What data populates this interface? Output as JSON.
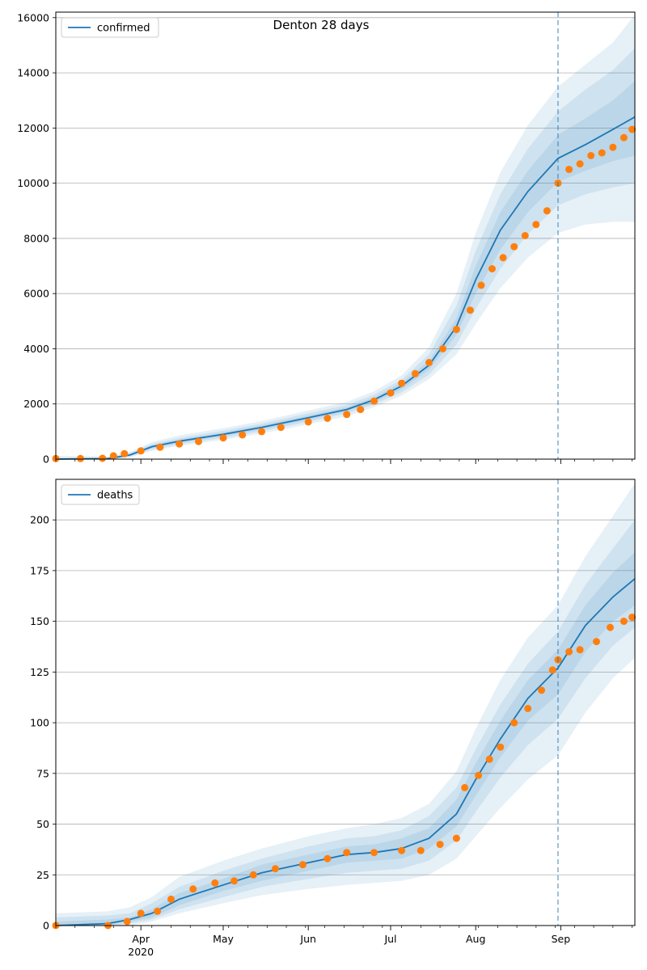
{
  "title": "Denton 28 days",
  "colors": {
    "model_line": "#1f77b4",
    "band": "#1f77b4",
    "observed": "#ff7f0e",
    "grid": "#b0b0b0",
    "cutoff_line": "#1f77b4"
  },
  "x_axis": {
    "start": "2020-03-01",
    "end": "2020-09-28",
    "month_labels": [
      {
        "date": "2020-04-01",
        "label": "Apr",
        "sub": "2020"
      },
      {
        "date": "2020-05-01",
        "label": "May",
        "sub": ""
      },
      {
        "date": "2020-06-01",
        "label": "Jun",
        "sub": ""
      },
      {
        "date": "2020-07-01",
        "label": "Jul",
        "sub": ""
      },
      {
        "date": "2020-08-01",
        "label": "Aug",
        "sub": ""
      },
      {
        "date": "2020-09-01",
        "label": "Sep",
        "sub": ""
      }
    ],
    "forecast_start": "2020-08-31"
  },
  "chart_data": [
    {
      "type": "line",
      "legend": "confirmed",
      "legend_position": "upper-left",
      "grid": "horizontal",
      "ylim": [
        0,
        16200
      ],
      "yticks": [
        0,
        2000,
        4000,
        6000,
        8000,
        10000,
        12000,
        14000,
        16000
      ],
      "model_x": [
        "2020-03-01",
        "2020-03-20",
        "2020-03-28",
        "2020-04-05",
        "2020-04-15",
        "2020-05-01",
        "2020-05-15",
        "2020-06-01",
        "2020-06-15",
        "2020-06-25",
        "2020-07-05",
        "2020-07-15",
        "2020-07-25",
        "2020-08-01",
        "2020-08-10",
        "2020-08-20",
        "2020-08-31",
        "2020-09-10",
        "2020-09-20",
        "2020-09-28"
      ],
      "model_y": [
        0,
        20,
        150,
        450,
        650,
        900,
        1150,
        1500,
        1800,
        2150,
        2650,
        3400,
        4800,
        6500,
        8300,
        9700,
        10900,
        11400,
        11950,
        12400
      ],
      "bands": [
        {
          "lo": [
            0,
            0,
            60,
            300,
            480,
            700,
            930,
            1260,
            1550,
            1880,
            2300,
            2900,
            3800,
            4900,
            6200,
            7300,
            8200,
            8500,
            8600,
            8600
          ],
          "hi": [
            120,
            100,
            260,
            620,
            860,
            1120,
            1380,
            1760,
            2070,
            2460,
            3040,
            4050,
            6000,
            8200,
            10400,
            12100,
            13500,
            14300,
            15100,
            16100
          ]
        },
        {
          "lo": [
            0,
            0,
            90,
            350,
            540,
            770,
            1010,
            1350,
            1650,
            1980,
            2420,
            3060,
            4150,
            5450,
            6900,
            8150,
            9200,
            9600,
            9850,
            10000
          ],
          "hi": [
            60,
            60,
            210,
            550,
            770,
            1030,
            1290,
            1660,
            1960,
            2340,
            2880,
            3800,
            5550,
            7550,
            9600,
            11250,
            12600,
            13400,
            14100,
            14900
          ]
        },
        {
          "lo": [
            0,
            5,
            115,
            395,
            595,
            835,
            1075,
            1420,
            1725,
            2065,
            2530,
            3240,
            4500,
            6000,
            7600,
            8950,
            10050,
            10450,
            10800,
            11000
          ],
          "hi": [
            30,
            40,
            185,
            505,
            705,
            965,
            1225,
            1580,
            1875,
            2235,
            2770,
            3560,
            5100,
            7000,
            8950,
            10450,
            11750,
            12350,
            13000,
            13700
          ]
        }
      ],
      "observed_x": [
        "2020-03-01",
        "2020-03-10",
        "2020-03-18",
        "2020-03-22",
        "2020-03-26",
        "2020-04-01",
        "2020-04-08",
        "2020-04-15",
        "2020-04-22",
        "2020-05-01",
        "2020-05-08",
        "2020-05-15",
        "2020-05-22",
        "2020-06-01",
        "2020-06-08",
        "2020-06-15",
        "2020-06-20",
        "2020-06-25",
        "2020-07-01",
        "2020-07-05",
        "2020-07-10",
        "2020-07-15",
        "2020-07-20",
        "2020-07-25",
        "2020-07-30",
        "2020-08-03",
        "2020-08-07",
        "2020-08-11",
        "2020-08-15",
        "2020-08-19",
        "2020-08-23",
        "2020-08-27",
        "2020-08-31",
        "2020-09-04",
        "2020-09-08",
        "2020-09-12",
        "2020-09-16",
        "2020-09-20",
        "2020-09-24",
        "2020-09-27"
      ],
      "observed_y": [
        20,
        20,
        30,
        120,
        200,
        300,
        430,
        550,
        640,
        770,
        880,
        1000,
        1150,
        1350,
        1480,
        1620,
        1800,
        2100,
        2400,
        2750,
        3100,
        3500,
        4000,
        4700,
        5400,
        6300,
        6900,
        7300,
        7700,
        8100,
        8500,
        9000,
        10000,
        10500,
        10700,
        11000,
        11100,
        11300,
        11650,
        11950
      ]
    },
    {
      "type": "line",
      "legend": "deaths",
      "legend_position": "upper-left",
      "grid": "horizontal",
      "ylim": [
        0,
        220
      ],
      "yticks": [
        0,
        25,
        50,
        75,
        100,
        125,
        150,
        175,
        200
      ],
      "model_x": [
        "2020-03-01",
        "2020-03-20",
        "2020-03-28",
        "2020-04-05",
        "2020-04-15",
        "2020-05-01",
        "2020-05-15",
        "2020-06-01",
        "2020-06-15",
        "2020-06-25",
        "2020-07-05",
        "2020-07-15",
        "2020-07-25",
        "2020-08-01",
        "2020-08-10",
        "2020-08-20",
        "2020-08-31",
        "2020-09-10",
        "2020-09-20",
        "2020-09-28"
      ],
      "model_y": [
        0,
        1,
        3,
        6,
        13,
        20,
        26,
        31,
        35,
        36,
        38,
        43,
        55,
        72,
        92,
        112,
        127,
        148,
        162,
        171
      ],
      "bands": [
        {
          "lo": [
            0,
            0,
            0,
            2,
            6,
            11,
            15,
            18,
            20,
            21,
            22,
            25,
            33,
            44,
            58,
            72,
            84,
            105,
            122,
            132
          ],
          "hi": [
            6,
            7,
            9,
            14,
            24,
            32,
            38,
            44,
            48,
            50,
            53,
            60,
            76,
            97,
            121,
            142,
            158,
            182,
            202,
            218
          ]
        },
        {
          "lo": [
            0,
            0,
            1,
            3,
            8,
            14,
            19,
            23,
            26,
            27,
            28,
            32,
            42,
            56,
            73,
            89,
            102,
            122,
            138,
            147
          ],
          "hi": [
            4,
            5,
            6,
            11,
            19,
            27,
            33,
            39,
            43,
            44,
            47,
            54,
            68,
            87,
            109,
            129,
            145,
            168,
            186,
            200
          ]
        },
        {
          "lo": [
            0,
            0,
            2,
            4,
            10,
            17,
            22,
            27,
            31,
            32,
            33,
            38,
            49,
            64,
            83,
            101,
            114,
            135,
            150,
            158
          ],
          "hi": [
            2,
            3,
            4,
            8,
            16,
            23,
            30,
            35,
            39,
            40,
            43,
            48,
            62,
            80,
            101,
            121,
            136,
            158,
            174,
            184
          ]
        }
      ],
      "observed_x": [
        "2020-03-01",
        "2020-03-20",
        "2020-03-27",
        "2020-04-01",
        "2020-04-07",
        "2020-04-12",
        "2020-04-20",
        "2020-04-28",
        "2020-05-05",
        "2020-05-12",
        "2020-05-20",
        "2020-05-30",
        "2020-06-08",
        "2020-06-15",
        "2020-06-25",
        "2020-07-05",
        "2020-07-12",
        "2020-07-19",
        "2020-07-25",
        "2020-07-28",
        "2020-08-02",
        "2020-08-06",
        "2020-08-10",
        "2020-08-15",
        "2020-08-20",
        "2020-08-25",
        "2020-08-29",
        "2020-08-31",
        "2020-09-04",
        "2020-09-08",
        "2020-09-14",
        "2020-09-19",
        "2020-09-24",
        "2020-09-27"
      ],
      "observed_y": [
        0,
        0,
        2,
        6,
        7,
        13,
        18,
        21,
        22,
        25,
        28,
        30,
        33,
        36,
        36,
        37,
        37,
        40,
        43,
        68,
        74,
        82,
        88,
        100,
        107,
        116,
        126,
        131,
        135,
        136,
        140,
        147,
        150,
        152
      ]
    }
  ]
}
